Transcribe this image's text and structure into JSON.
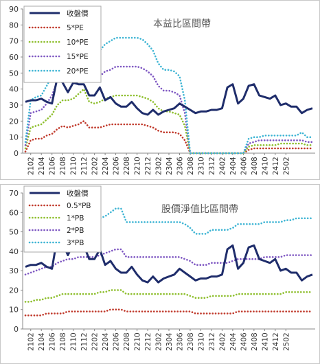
{
  "chart_data": [
    {
      "type": "line",
      "title": "本益比區間帶",
      "ylim": [
        0,
        90
      ],
      "yticks": [
        0,
        10,
        20,
        30,
        40,
        50,
        60,
        70,
        80,
        90
      ],
      "xtick_labels": [
        "2102",
        "2104",
        "2106",
        "2108",
        "2110",
        "2112",
        "2202",
        "2204",
        "2206",
        "2208",
        "2210",
        "2212",
        "2302",
        "2304",
        "2306",
        "2308",
        "2310",
        "2312",
        "2402",
        "2404",
        "2406",
        "2408",
        "2410",
        "2412",
        "2502"
      ],
      "legend_position": "top-left",
      "grid": false,
      "series": [
        {
          "name": "收盤價",
          "color": "#1f2d6b",
          "style": "solid",
          "values": [
            32,
            33,
            33,
            34,
            32,
            31,
            47,
            44,
            38,
            44,
            43,
            43,
            36,
            36,
            41,
            33,
            35,
            31,
            29,
            29,
            32,
            28,
            25,
            24,
            27,
            24,
            26,
            27,
            28,
            31,
            29,
            27,
            25,
            26,
            26,
            27,
            27,
            28,
            41,
            43,
            31,
            34,
            42,
            43,
            36,
            35,
            34,
            36,
            30,
            31,
            29,
            29,
            25,
            27,
            28
          ]
        },
        {
          "name": "5*PE",
          "color": "#c0392b",
          "style": "dotted",
          "values": [
            1,
            8,
            9,
            9,
            11,
            12,
            15,
            17,
            16,
            17,
            18,
            20,
            16,
            16,
            16,
            17,
            18,
            18,
            18,
            18,
            18,
            18,
            18,
            17,
            16,
            14,
            13,
            13,
            13,
            12,
            8,
            0,
            0,
            0,
            0,
            0,
            0,
            0,
            0,
            0,
            0,
            0,
            2,
            3,
            3,
            3,
            3,
            3,
            3,
            3,
            3,
            3,
            3,
            3,
            3
          ]
        },
        {
          "name": "10*PE",
          "color": "#8fbf2f",
          "style": "dotted",
          "values": [
            3,
            16,
            17,
            18,
            21,
            24,
            30,
            33,
            33,
            34,
            37,
            40,
            32,
            31,
            32,
            34,
            35,
            36,
            36,
            36,
            36,
            36,
            35,
            34,
            32,
            28,
            26,
            26,
            25,
            24,
            17,
            0,
            0,
            0,
            0,
            0,
            0,
            0,
            0,
            0,
            0,
            0,
            4,
            5,
            5,
            5,
            5,
            5,
            6,
            6,
            6,
            6,
            6,
            5,
            5
          ]
        },
        {
          "name": "15*PE",
          "color": "#7e57c2",
          "style": "dotted",
          "values": [
            5,
            25,
            26,
            27,
            31,
            36,
            45,
            50,
            49,
            51,
            55,
            60,
            48,
            47,
            48,
            51,
            52,
            54,
            54,
            54,
            54,
            54,
            53,
            51,
            48,
            42,
            39,
            39,
            38,
            36,
            25,
            0,
            0,
            0,
            0,
            0,
            0,
            0,
            0,
            0,
            0,
            0,
            6,
            7,
            8,
            8,
            8,
            8,
            8,
            8,
            8,
            8,
            8,
            7,
            7
          ]
        },
        {
          "name": "20*PE",
          "color": "#3fb5d4",
          "style": "dotted",
          "values": [
            7,
            33,
            35,
            36,
            42,
            48,
            60,
            66,
            65,
            68,
            73,
            80,
            64,
            63,
            64,
            68,
            70,
            72,
            72,
            72,
            72,
            72,
            71,
            68,
            64,
            56,
            52,
            52,
            51,
            48,
            33,
            0,
            0,
            0,
            0,
            0,
            0,
            0,
            0,
            0,
            0,
            0,
            9,
            10,
            10,
            11,
            11,
            11,
            11,
            11,
            11,
            11,
            13,
            10,
            10
          ]
        }
      ]
    },
    {
      "type": "line",
      "title": "股價淨值比區間帶",
      "ylim": [
        0,
        70
      ],
      "yticks": [
        0,
        10,
        20,
        30,
        40,
        50,
        60,
        70
      ],
      "xtick_labels": [
        "2102",
        "2104",
        "2106",
        "2108",
        "2110",
        "2112",
        "2202",
        "2204",
        "2206",
        "2208",
        "2210",
        "2212",
        "2302",
        "2304",
        "2306",
        "2308",
        "2310",
        "2312",
        "2402",
        "2404",
        "2406",
        "2408",
        "2410",
        "2412",
        "2502"
      ],
      "legend_position": "top-left",
      "grid": false,
      "series": [
        {
          "name": "收盤價",
          "color": "#1f2d6b",
          "style": "solid",
          "values": [
            32,
            33,
            33,
            34,
            32,
            31,
            47,
            44,
            38,
            44,
            43,
            43,
            36,
            36,
            41,
            33,
            35,
            31,
            29,
            29,
            32,
            28,
            25,
            24,
            27,
            24,
            26,
            27,
            28,
            31,
            29,
            27,
            25,
            26,
            26,
            27,
            27,
            28,
            41,
            43,
            31,
            34,
            42,
            43,
            36,
            35,
            34,
            36,
            30,
            31,
            29,
            29,
            25,
            27,
            28
          ]
        },
        {
          "name": "0.5*PB",
          "color": "#c0392b",
          "style": "dotted",
          "values": [
            7,
            7,
            7,
            7,
            8,
            8,
            8,
            8,
            9,
            9,
            9,
            9,
            9,
            9,
            9,
            9,
            10,
            10,
            10,
            9,
            9,
            9,
            9,
            9,
            9,
            9,
            9,
            9,
            9,
            9,
            9,
            9,
            8,
            8,
            8,
            8,
            8,
            8,
            8,
            8,
            9,
            9,
            9,
            9,
            9,
            9,
            9,
            9,
            9,
            9,
            9,
            9,
            9,
            9,
            9
          ]
        },
        {
          "name": "1*PB",
          "color": "#8fbf2f",
          "style": "dotted",
          "values": [
            14,
            14,
            15,
            15,
            16,
            16,
            17,
            18,
            18,
            18,
            18,
            18,
            18,
            18,
            19,
            19,
            20,
            20,
            20,
            18,
            18,
            18,
            18,
            18,
            18,
            18,
            18,
            18,
            18,
            18,
            18,
            17,
            16,
            16,
            16,
            17,
            17,
            17,
            17,
            17,
            18,
            18,
            18,
            18,
            18,
            18,
            18,
            18,
            18,
            19,
            19,
            19,
            19,
            19,
            19
          ]
        },
        {
          "name": "2*PB",
          "color": "#7e57c2",
          "style": "dotted",
          "values": [
            28,
            29,
            30,
            31,
            32,
            32,
            34,
            35,
            36,
            36,
            37,
            37,
            37,
            37,
            38,
            39,
            40,
            41,
            41,
            37,
            37,
            37,
            37,
            37,
            37,
            37,
            37,
            37,
            37,
            37,
            36,
            35,
            33,
            33,
            33,
            34,
            34,
            34,
            34,
            35,
            36,
            36,
            36,
            36,
            36,
            37,
            37,
            37,
            37,
            38,
            38,
            38,
            38,
            38,
            38
          ]
        },
        {
          "name": "3*PB",
          "color": "#3fb5d4",
          "style": "dotted",
          "values": [
            42,
            43,
            45,
            46,
            48,
            49,
            51,
            53,
            54,
            55,
            56,
            56,
            56,
            56,
            57,
            58,
            60,
            62,
            62,
            55,
            55,
            55,
            55,
            55,
            55,
            55,
            55,
            55,
            55,
            55,
            54,
            52,
            49,
            49,
            49,
            51,
            51,
            51,
            51,
            52,
            54,
            54,
            54,
            54,
            54,
            55,
            55,
            55,
            55,
            56,
            56,
            57,
            57,
            57,
            57
          ]
        }
      ]
    }
  ]
}
